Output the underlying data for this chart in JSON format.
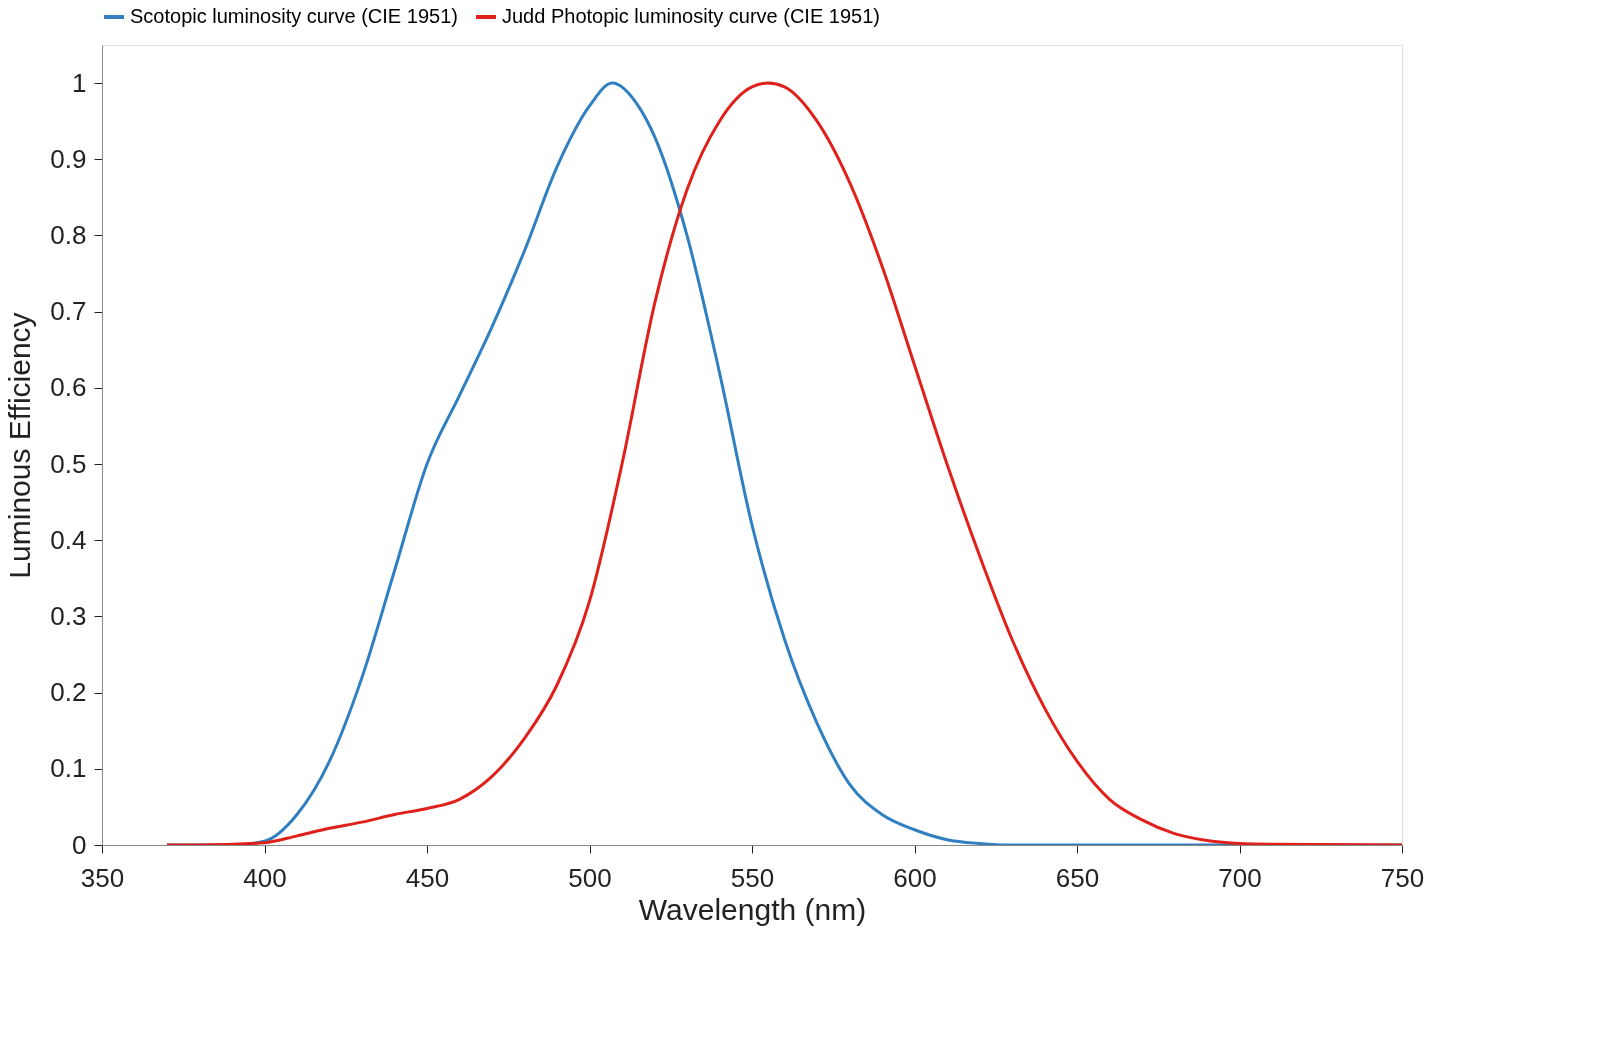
{
  "chart_data": {
    "type": "line",
    "xlabel": "Wavelength (nm)",
    "ylabel": "Luminous Efficiency",
    "xlim": [
      350,
      750
    ],
    "xticks": [
      350,
      400,
      450,
      500,
      550,
      600,
      650,
      700,
      750
    ],
    "ylim": [
      0,
      1.05
    ],
    "yticks": [
      0,
      0.1,
      0.2,
      0.3,
      0.4,
      0.5,
      0.6,
      0.7,
      0.8,
      0.9,
      1
    ],
    "grid": false,
    "legend": "top",
    "marker": "none",
    "line_style": "solid",
    "series": [
      {
        "name": "Scotopic luminosity curve (CIE 1951)",
        "color": "#2f7fc1",
        "x": [
          370,
          390,
          400,
          410,
          420,
          430,
          440,
          450,
          460,
          470,
          480,
          490,
          500,
          507,
          515,
          520,
          530,
          540,
          550,
          560,
          570,
          580,
          590,
          600,
          610,
          620,
          630,
          700,
          750
        ],
        "values": [
          0,
          0,
          0.005,
          0.04,
          0.11,
          0.22,
          0.36,
          0.5,
          0.59,
          0.68,
          0.78,
          0.89,
          0.97,
          1.0,
          0.97,
          0.93,
          0.8,
          0.62,
          0.42,
          0.27,
          0.16,
          0.08,
          0.04,
          0.02,
          0.007,
          0.002,
          0,
          0,
          0
        ]
      },
      {
        "name": "Judd Photopic luminosity curve (CIE 1951)",
        "color": "#e0201b",
        "x": [
          370,
          380,
          400,
          410,
          420,
          430,
          440,
          450,
          460,
          470,
          480,
          490,
          500,
          510,
          520,
          530,
          540,
          550,
          555,
          560,
          570,
          580,
          590,
          600,
          610,
          620,
          630,
          640,
          650,
          660,
          670,
          680,
          690,
          700,
          710,
          750
        ],
        "values": [
          0,
          0,
          0.003,
          0.012,
          0.022,
          0.03,
          0.04,
          0.048,
          0.06,
          0.09,
          0.14,
          0.21,
          0.32,
          0.5,
          0.71,
          0.86,
          0.95,
          0.995,
          1.0,
          0.995,
          0.95,
          0.87,
          0.76,
          0.63,
          0.5,
          0.38,
          0.27,
          0.18,
          0.11,
          0.06,
          0.033,
          0.015,
          0.006,
          0.002,
          0.001,
          0
        ]
      }
    ]
  }
}
